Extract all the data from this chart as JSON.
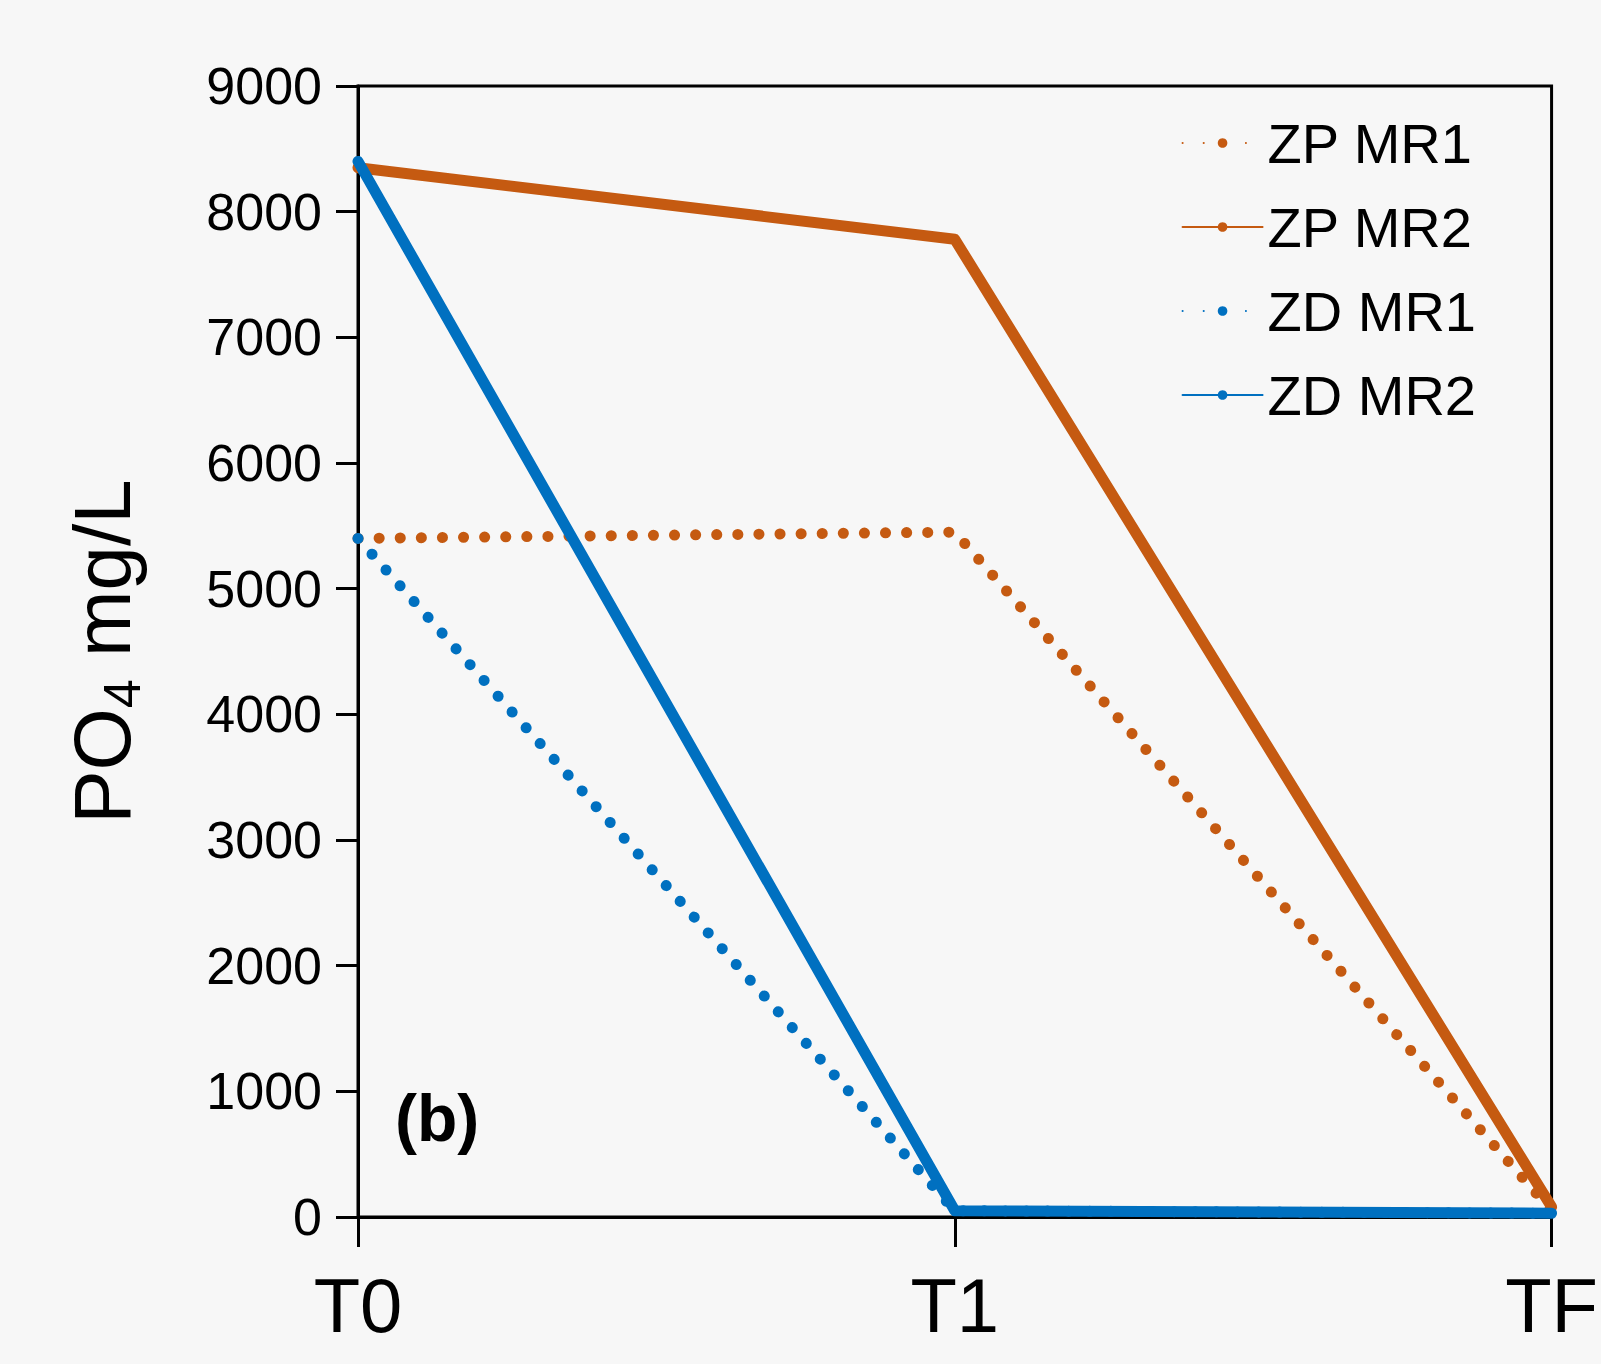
{
  "chart_data": {
    "type": "line",
    "ylabel": "PO$_{4}$ mg/L",
    "categories": [
      "T0",
      "T1",
      "TF"
    ],
    "series": [
      {
        "name": "ZP MR1",
        "color": "#c55a11",
        "line_style": "dotted",
        "values": [
          5400,
          5450,
          50
        ]
      },
      {
        "name": "ZP MR2",
        "color": "#c55a11",
        "line_style": "solid",
        "values": [
          8350,
          7780,
          80
        ]
      },
      {
        "name": "ZD MR1",
        "color": "#0070c0",
        "line_style": "dotted",
        "values": [
          5400,
          50,
          30
        ]
      },
      {
        "name": "ZD MR2",
        "color": "#0070c0",
        "line_style": "solid",
        "values": [
          8400,
          50,
          30
        ]
      }
    ],
    "ylim": [
      0,
      9000
    ],
    "yticks": [
      0,
      1000,
      2000,
      3000,
      4000,
      5000,
      6000,
      7000,
      8000,
      9000
    ],
    "grid": false,
    "legend": "top right",
    "marker": "none",
    "annotations": [
      "(b)"
    ]
  }
}
